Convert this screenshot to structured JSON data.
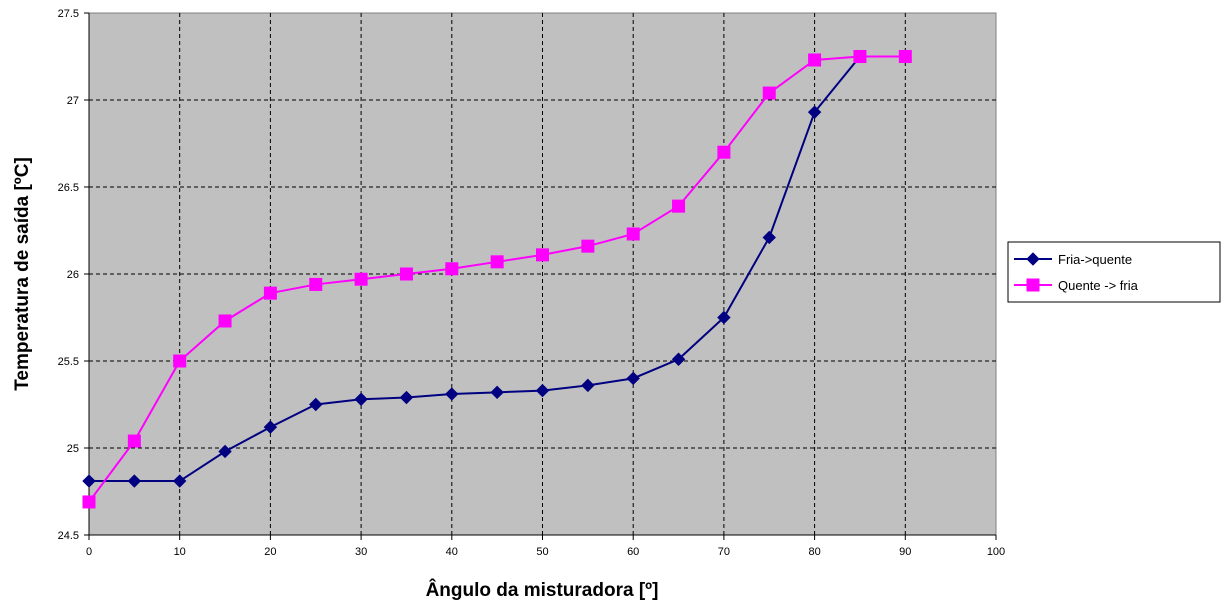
{
  "chart_data": {
    "type": "line",
    "xlabel": "Ângulo da misturadora [º]",
    "ylabel": "Temperatura de saída [ºC]",
    "xlim": [
      0,
      100
    ],
    "ylim": [
      24.5,
      27.5
    ],
    "x_ticks": [
      "0",
      "10",
      "20",
      "30",
      "40",
      "50",
      "60",
      "70",
      "80",
      "90",
      "100"
    ],
    "y_ticks": [
      "24.5",
      "25",
      "25.5",
      "26",
      "26.5",
      "27",
      "27.5"
    ],
    "grid": true,
    "legend_position": "right",
    "plot_background": "#c0c0c0",
    "series": [
      {
        "name": "Fria->quente",
        "color": "#000080",
        "marker": "diamond",
        "x": [
          0,
          5,
          10,
          15,
          20,
          25,
          30,
          35,
          40,
          45,
          50,
          55,
          60,
          65,
          70,
          75,
          80,
          85
        ],
        "values": [
          24.81,
          24.81,
          24.81,
          24.98,
          25.12,
          25.25,
          25.28,
          25.29,
          25.31,
          25.32,
          25.33,
          25.36,
          25.4,
          25.51,
          25.75,
          26.21,
          26.93,
          27.25
        ]
      },
      {
        "name": "Quente -> fria",
        "color": "#ff00ff",
        "marker": "square",
        "x": [
          0,
          5,
          10,
          15,
          20,
          25,
          30,
          35,
          40,
          45,
          50,
          55,
          60,
          65,
          70,
          75,
          80,
          85,
          90
        ],
        "values": [
          24.69,
          25.04,
          25.5,
          25.73,
          25.89,
          25.94,
          25.97,
          26.0,
          26.03,
          26.07,
          26.11,
          26.16,
          26.23,
          26.39,
          26.7,
          27.04,
          27.23,
          27.25,
          27.25
        ]
      }
    ]
  }
}
